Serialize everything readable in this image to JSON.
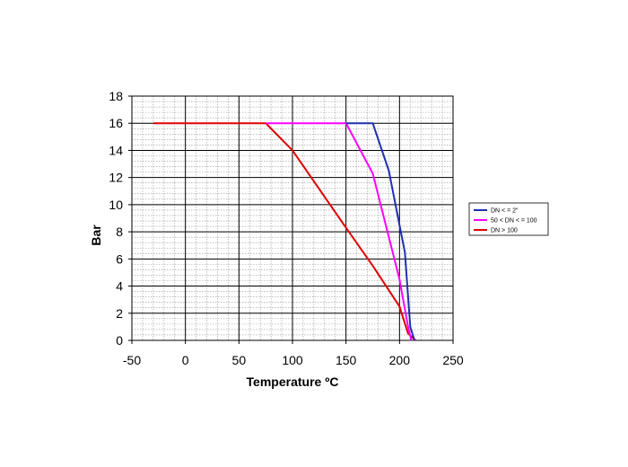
{
  "chart_data": {
    "type": "line",
    "xlabel": "Temperature ºC",
    "ylabel": "Bar",
    "xlim": [
      -50,
      250
    ],
    "ylim": [
      0,
      18
    ],
    "xticks": [
      -50,
      0,
      50,
      100,
      150,
      200,
      250
    ],
    "yticks": [
      0,
      2,
      4,
      6,
      8,
      10,
      12,
      14,
      16,
      18
    ],
    "grid": true,
    "legend_position": "right",
    "series": [
      {
        "name": "DN < = 2\"",
        "color": "#1f2fb0",
        "points": [
          [
            150,
            16
          ],
          [
            175,
            16
          ],
          [
            190,
            12.5
          ],
          [
            200,
            8.5
          ],
          [
            205,
            6.5
          ],
          [
            210,
            1
          ],
          [
            214,
            0
          ]
        ]
      },
      {
        "name": "50 < DN < = 100",
        "color": "#ff00ff",
        "points": [
          [
            75,
            16
          ],
          [
            150,
            16
          ],
          [
            175,
            12.3
          ],
          [
            200,
            4.5
          ],
          [
            208,
            1
          ],
          [
            211,
            0
          ]
        ]
      },
      {
        "name": "DN > 100",
        "color": "#e00000",
        "points": [
          [
            -30,
            16
          ],
          [
            75,
            16
          ],
          [
            100,
            14
          ],
          [
            150,
            8.3
          ],
          [
            175,
            5.5
          ],
          [
            200,
            2.5
          ],
          [
            208,
            0.5
          ],
          [
            215,
            0
          ]
        ]
      }
    ]
  }
}
